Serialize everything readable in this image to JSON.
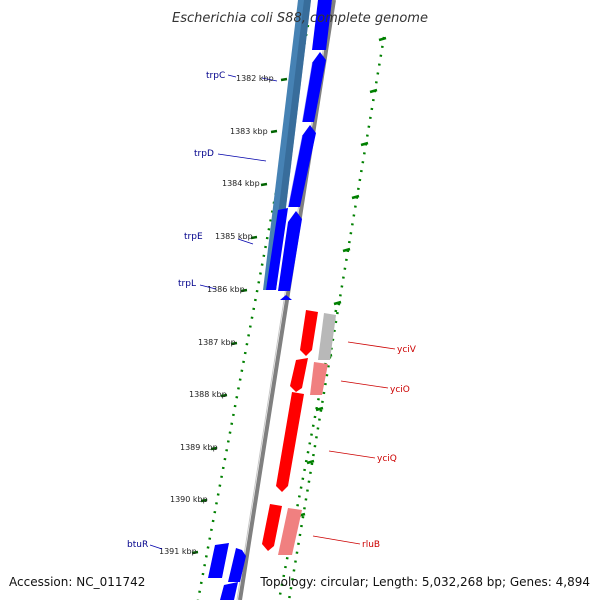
{
  "title": "Escherichia coli S88, complete genome",
  "footer": {
    "accession": "Accession: NC_011742",
    "stats": "Topology: circular; Length: 5,032,268 bp; Genes: 4,894"
  },
  "colors": {
    "forward_gene": "#0000ff",
    "reverse_gene": "#ff0000",
    "pseudo_gene": "#b0b0b0",
    "operon_highlight": "#4682b4",
    "gc_skew_dots": "#008000",
    "backbone": "#808080",
    "forward_label": "#00008b",
    "reverse_label": "#cc0000"
  },
  "scale_labels": [
    {
      "id": "k1382",
      "text": "1382 kbp"
    },
    {
      "id": "k1383",
      "text": "1383 kbp"
    },
    {
      "id": "k1384",
      "text": "1384 kbp"
    },
    {
      "id": "k1385",
      "text": "1385 kbp"
    },
    {
      "id": "k1386",
      "text": "1386 kbp"
    },
    {
      "id": "k1387",
      "text": "1387 kbp"
    },
    {
      "id": "k1388",
      "text": "1388 kbp"
    },
    {
      "id": "k1389",
      "text": "1389 kbp"
    },
    {
      "id": "k1390",
      "text": "1390 kbp"
    },
    {
      "id": "k1391",
      "text": "1391 kbp"
    }
  ],
  "genes": [
    {
      "id": "trpC",
      "name": "trpC",
      "strand": "forward"
    },
    {
      "id": "trpD",
      "name": "trpD",
      "strand": "forward"
    },
    {
      "id": "trpE",
      "name": "trpE",
      "strand": "forward"
    },
    {
      "id": "trpL",
      "name": "trpL",
      "strand": "forward"
    },
    {
      "id": "yciV",
      "name": "yciV",
      "strand": "reverse"
    },
    {
      "id": "yciO",
      "name": "yciO",
      "strand": "reverse"
    },
    {
      "id": "yciQ",
      "name": "yciQ",
      "strand": "reverse"
    },
    {
      "id": "rluB",
      "name": "rluB",
      "strand": "reverse"
    },
    {
      "id": "btuR",
      "name": "btuR",
      "strand": "forward"
    }
  ]
}
